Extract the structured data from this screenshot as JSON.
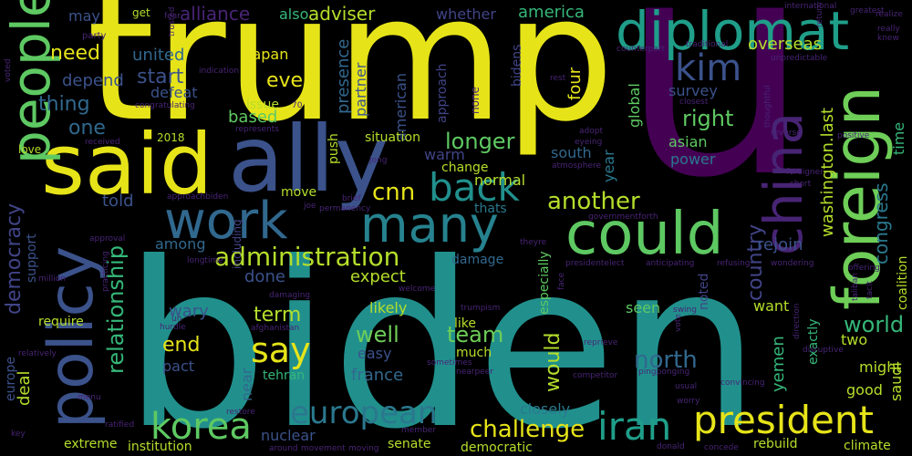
{
  "words": {
    "trump": "trump",
    "u": "u",
    "biden": "biden",
    "said": "said",
    "ally": "ally",
    "work": "work",
    "many": "many",
    "could": "could",
    "foreign": "foreign",
    "diplomat": "diplomat",
    "policy": "policy",
    "people": "people",
    "china": "china",
    "back": "back",
    "president": "president",
    "korea": "korea",
    "iran": "iran",
    "european": "european",
    "administration": "administration",
    "say": "say",
    "kim": "kim",
    "cnn": "cnn",
    "another": "another",
    "need": "need",
    "democracy": "democracy",
    "relationship": "relationship",
    "challenge": "challenge",
    "longer": "longer",
    "north": "north",
    "right": "right",
    "world": "world",
    "team": "team",
    "well": "well",
    "end": "end",
    "term": "term",
    "would": "would",
    "country": "country",
    "congress": "congress",
    "washington_last": "washington.last",
    "start": "start",
    "even": "even",
    "united": "united",
    "one": "one",
    "thing": "thing",
    "depend": "depend",
    "adviser": "adviser",
    "alliance": "alliance",
    "america": "america",
    "also": "also",
    "may": "may",
    "whether": "whether",
    "japan": "japan",
    "defeat": "defeat",
    "based": "based",
    "presence": "presence",
    "partner": "partner",
    "american": "american",
    "approach": "approach",
    "bidens": "bidens",
    "overseas": "overseas",
    "four": "four",
    "global": "global",
    "year": "year",
    "asian": "asian",
    "survey": "survey",
    "rejoin": "rejoin",
    "time": "time",
    "south": "south",
    "warm": "warm",
    "normal": "normal",
    "change": "change",
    "situation": "situation",
    "push": "push",
    "issue": "issue",
    "told": "told",
    "move": "move",
    "among": "among",
    "done": "done",
    "expect": "expect",
    "likely": "likely",
    "damage": "damage",
    "thats": "thats",
    "power": "power",
    "yemen": "yemen",
    "noted": "noted",
    "exactly": "exactly",
    "seen": "seen",
    "want": "want",
    "two": "two",
    "might": "might",
    "saudi": "saudi",
    "good": "good",
    "coalition": "coalition",
    "climate": "climate",
    "rebuild": "rebuild",
    "democratic": "democratic",
    "senate": "senate",
    "institution": "institution",
    "extreme": "extreme",
    "deal": "deal",
    "europe": "europe",
    "support": "support",
    "require": "require",
    "wary": "wary",
    "pact": "pact",
    "near": "near",
    "tehran": "tehran",
    "france": "france",
    "easy": "easy",
    "like": "like",
    "much": "much",
    "closely": "closely",
    "nuclear": "nuclear",
    "especially": "especially",
    "including": "including",
    "love": "love",
    "2018": "2018",
    "get": "get",
    "party": "party",
    "none": "none",
    "including2": "including",
    "taliban": "taliban",
    "tacit": "tacit",
    "offering": "offering",
    "wondering": "wondering",
    "refusing": "refusing",
    "anticipating": "anticipating",
    "presidentelect": "presidentelect",
    "face": "face",
    "theyre": "theyre",
    "government": "government",
    "approachbiden": "approachbiden",
    "brief": "brief",
    "permanency": "permanency",
    "joe": "joe",
    "jong": "jong",
    "atmosphere": "atmosphere",
    "eyeing": "eyeing",
    "adopt": "adopt",
    "rest": "rest",
    "closest": "closest",
    "reverse": "reverse",
    "positive": "positive",
    "foreigner": "foreigner",
    "short": "short",
    "forth": "forth",
    "represents": "represents",
    "international": "international",
    "greatest": "greatest",
    "realize": "realize",
    "return": "return",
    "really": "really",
    "knew": "knew",
    "counterpart": "counterpart",
    "traditional": "traditional",
    "unpredictable": "unpredictable",
    "indication": "indication",
    "congratulating": "congratulating",
    "seventy": "70",
    "fear": "fear",
    "trusted": "trusted",
    "voted": "voted",
    "received": "received",
    "approval": "approval",
    "longtime": "longtime",
    "million": "million",
    "damaging": "damaging",
    "welcome": "welcome",
    "practicing": "practicing",
    "hurdle": "hurdle",
    "afghanistan": "afghanistan",
    "trumpism": "trumpism",
    "nearpeer": "nearpeer",
    "sometimes": "sometimes",
    "reprieve": "reprieve",
    "swing": "swing",
    "competitor": "competitor",
    "pingponging": "pingponging",
    "usual": "usual",
    "worry": "worry",
    "convincing": "convincing",
    "disruptive": "disruptive",
    "relatively": "relatively",
    "restore": "restore",
    "ratified": "ratified",
    "member": "member",
    "around": "around",
    "movement": "movement",
    "moving": "moving",
    "donald": "donald",
    "concede": "concede",
    "key": "key",
    "menu": "menu",
    "nucleararmed": "nucleararmed",
    "un": "un",
    "vote": "vote",
    "direction": "direction",
    "thoughtful": "thoughtful"
  }
}
